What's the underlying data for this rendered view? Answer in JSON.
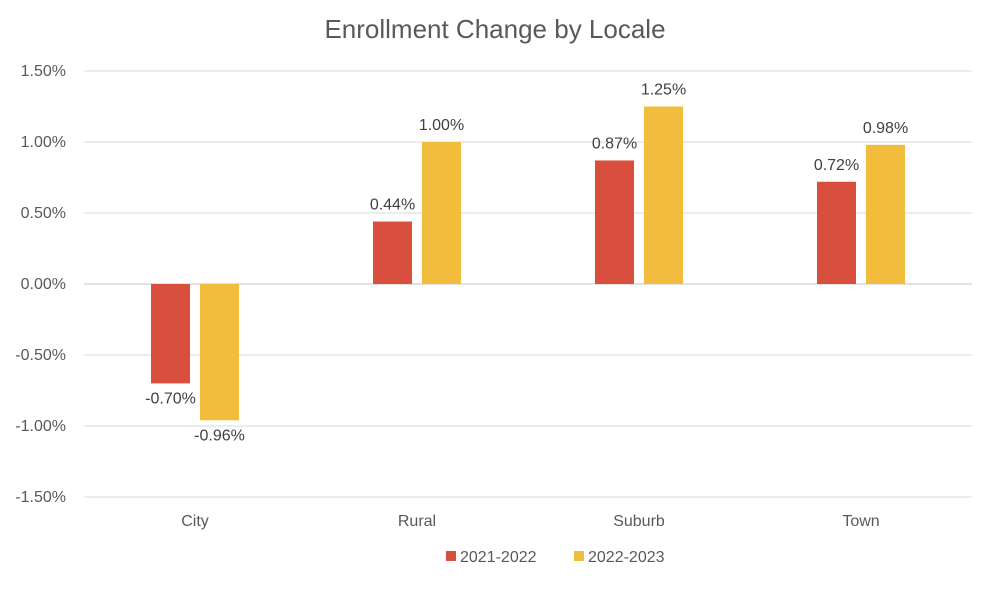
{
  "chart_data": {
    "type": "bar",
    "title": "Enrollment Change by Locale",
    "xlabel": "",
    "ylabel": "",
    "categories": [
      "City",
      "Rural",
      "Suburb",
      "Town"
    ],
    "series": [
      {
        "name": "2021-2022",
        "color": "#d94f3d",
        "values": [
          -0.7,
          0.44,
          0.87,
          0.72
        ],
        "labels": [
          "-0.70%",
          "0.44%",
          "0.87%",
          "0.72%"
        ]
      },
      {
        "name": "2022-2023",
        "color": "#f2bc3c",
        "values": [
          -0.96,
          1.0,
          1.25,
          0.98
        ],
        "labels": [
          "-0.96%",
          "1.00%",
          "1.25%",
          "0.98%"
        ]
      }
    ],
    "ylim": [
      -1.5,
      1.5
    ],
    "yticks": [
      1.5,
      1.0,
      0.5,
      0.0,
      -0.5,
      -1.0,
      -1.5
    ],
    "ytick_labels": [
      "1.50%",
      "1.00%",
      "0.50%",
      "0.00%",
      "-0.50%",
      "-1.00%",
      "-1.50%"
    ],
    "grid": true,
    "legend_position": "bottom"
  }
}
